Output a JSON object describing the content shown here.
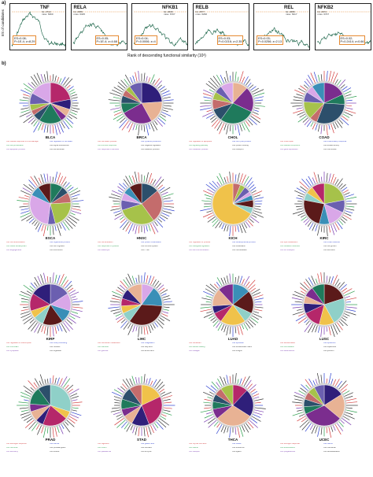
{
  "panel_a_label": "a)",
  "panel_b_label": "b)",
  "es_axis": {
    "ylabel": "ES of candidates",
    "xlabel": "Rank of descending functional similarity (10³)"
  },
  "es_panels": [
    {
      "gene": "TNF",
      "sub": [
        "hit: 2710",
        "miss: 6360"
      ],
      "stats": [
        "ES=0.08;",
        "P=1E-4; z=8.29"
      ],
      "color": "#0b5a3c"
    },
    {
      "gene": "RELA",
      "sub": [
        "hit: 2655",
        "miss: 6325"
      ],
      "stats": [
        "ES=0.05;",
        "P=1E-4; z=4.68"
      ],
      "color": "#0b5a3c"
    },
    {
      "gene": "NFKB1",
      "sub": [
        "hit: 2608",
        "miss: 6707"
      ],
      "stats": [
        "ES=0.04;",
        "P=0.0006; z=4"
      ],
      "color": "#0b5a3c"
    },
    {
      "gene": "RELB",
      "sub": [
        "hit: 2577",
        "miss: 6296"
      ],
      "stats": [
        "ES=0.03;",
        "P=0.0216; z=2.35"
      ],
      "color": "#0b5a3c"
    },
    {
      "gene": "REL",
      "sub": [
        "hit: 2688",
        "miss: 6317"
      ],
      "stats": [
        "ES=0.03;",
        "P=0.0256; z=2.13"
      ],
      "color": "#0b5a3c"
    },
    {
      "gene": "NFKB2",
      "sub": [
        "hit: 2674",
        "miss: 6707"
      ],
      "stats": [
        "ES=0.02;",
        "P=0.2414; z=0.66"
      ],
      "color": "#0b5a3c"
    }
  ],
  "palette": [
    "#b5276a",
    "#2f1f7a",
    "#e8b294",
    "#7b2d8e",
    "#1f7a5c",
    "#2c4f6b",
    "#c46c6c",
    "#a6c24a",
    "#6b5fb0",
    "#d9a7e8",
    "#3a8fb7",
    "#5b1a1a",
    "#8fd0c8",
    "#f0c24a"
  ],
  "cohorts": [
    {
      "name": "BLCA",
      "slices": [
        22,
        8,
        6,
        5,
        18,
        6,
        4,
        5,
        9,
        17
      ],
      "legend": [
        "C01 cellular response to DNA damage",
        "C02 regulation of cell death",
        "C03 cell proliferation",
        "C04 signal transduction",
        "C05 apoptotic process",
        "C06 cell adhesion"
      ]
    },
    {
      "name": "BRCA",
      "slices": [
        24,
        18,
        25,
        8,
        6,
        5,
        4,
        10
      ],
      "legend": [
        "C01 cell death process",
        "C02 cytokine production",
        "C03 immune response",
        "C04 negative regulation",
        "C05 response to stimulus",
        "C06 catabolic process"
      ]
    },
    {
      "name": "CHOL",
      "slices": [
        12,
        20,
        28,
        10,
        8,
        6,
        6,
        10
      ],
      "legend": [
        "C01 regulation of apoptosis",
        "C02 cell cycle process",
        "C03 signaling pathway",
        "C04 protein binding",
        "C05 metabolic process",
        "C06 transport"
      ]
    },
    {
      "name": "COAD",
      "slices": [
        18,
        8,
        30,
        6,
        14,
        8,
        6,
        10
      ],
      "legend": [
        "C01 DNA repair",
        "C02 inflammatory response",
        "C03 cellular component",
        "C04 kinase activity",
        "C05 gene expression",
        "C06 membrane"
      ]
    },
    {
      "name": "ESCA",
      "slices": [
        10,
        6,
        8,
        22,
        6,
        30,
        8,
        10
      ],
      "legend": [
        "C01 cell differentiation",
        "C02 organismal process",
        "C03 tissue development",
        "C04 cell migration",
        "C05 angiogenesis",
        "C06 locomotion"
      ]
    },
    {
      "name": "HNSC",
      "slices": [
        14,
        26,
        30,
        8,
        6,
        6,
        10
      ],
      "legend": [
        "C01 cell activation",
        "C02 protein modification",
        "C03 response to cytokine",
        "C04 immune system",
        "C05 leukocyte",
        "C06 T cell"
      ]
    },
    {
      "name": "KICH",
      "slices": [
        6,
        4,
        5,
        3,
        4,
        6,
        5,
        67
      ],
      "legend": [
        "C01 regulation of process",
        "C02 developmental process",
        "C03 biological regulation",
        "C04 localization",
        "C05 cell communication",
        "C06 homeostasis"
      ]
    },
    {
      "name": "KIRC",
      "slices": [
        22,
        10,
        14,
        8,
        24,
        6,
        6,
        10
      ],
      "legend": [
        "C01 lipid metabolism",
        "C02 small molecule",
        "C03 oxidation reduction",
        "C04 cell growth",
        "C05 ion transport",
        "C06 secretion"
      ]
    },
    {
      "name": "KIRP",
      "slices": [
        16,
        14,
        10,
        16,
        8,
        6,
        14,
        16
      ],
      "legend": [
        "C01 regulation of transcription",
        "C02 RNA processing",
        "C03 chromatin",
        "C04 nucleus",
        "C05 cytoplasm",
        "C06 organelle"
      ]
    },
    {
      "name": "LIHC",
      "slices": [
        10,
        16,
        34,
        8,
        6,
        6,
        8,
        12
      ],
      "legend": [
        "C01 xenobiotic metabolism",
        "C02 coagulation",
        "C03 bile acid",
        "C04 fatty acid",
        "C05 glucose",
        "C06 amino acid"
      ]
    },
    {
      "name": "LUAD",
      "slices": [
        14,
        18,
        8,
        20,
        8,
        6,
        14,
        12
      ],
      "legend": [
        "C01 surfactant",
        "C02 epithelial",
        "C03 wound healing",
        "C04 extracellular matrix",
        "C05 collagen",
        "C06 integrin"
      ]
    },
    {
      "name": "LUSC",
      "slices": [
        20,
        22,
        12,
        14,
        8,
        6,
        8,
        10
      ],
      "legend": [
        "C01 keratinization",
        "C02 epidermis",
        "C03 cornification",
        "C04 squamous",
        "C05 desmosome",
        "C06 junction"
      ]
    },
    {
      "name": "PRAD",
      "slices": [
        30,
        6,
        20,
        6,
        8,
        6,
        14,
        10
      ],
      "legend": [
        "C01 androgen response",
        "C02 steroid",
        "C03 hormone",
        "C04 prostate gland",
        "C05 secretory",
        "C06 vesicle"
      ]
    },
    {
      "name": "STAD",
      "slices": [
        18,
        26,
        14,
        8,
        6,
        8,
        10,
        10
      ],
      "legend": [
        "C01 digestion",
        "C02 gastric acid",
        "C03 mucin",
        "C04 stomach",
        "C05 parietal cell",
        "C06 enzyme"
      ]
    },
    {
      "name": "THCA",
      "slices": [
        12,
        22,
        30,
        8,
        6,
        6,
        6,
        10
      ],
      "legend": [
        "C01 thyroid hormone",
        "C02 iodide",
        "C03 follicle",
        "C04 endocrine",
        "C05 receptor",
        "C06 ligand"
      ]
    },
    {
      "name": "UCEC",
      "slices": [
        16,
        20,
        32,
        6,
        6,
        6,
        6,
        8
      ],
      "legend": [
        "C01 estrogen response",
        "C02 uterus",
        "C03 endometrium",
        "C04 menstrual",
        "C05 progesterone",
        "C06 decidualization"
      ]
    }
  ]
}
